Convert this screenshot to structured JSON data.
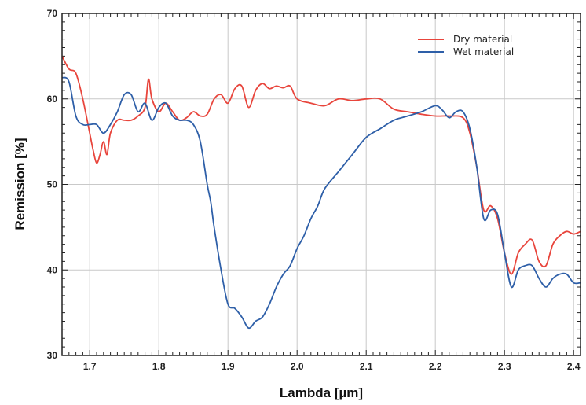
{
  "chart_data": {
    "type": "line",
    "xlabel": "Lambda [µm]",
    "ylabel": "Remission [%]",
    "xlim": [
      1.66,
      2.41
    ],
    "ylim": [
      30,
      70
    ],
    "grid": true,
    "legend_placement": "top-right",
    "x_ticks": [
      "1.7",
      "1.8",
      "1.9",
      "2.0",
      "2.1",
      "2.2",
      "2.3",
      "2.4"
    ],
    "y_ticks": [
      "30",
      "40",
      "50",
      "60",
      "70"
    ],
    "series": [
      {
        "name": "Dry material",
        "color": "#e8453c",
        "x": [
          1.66,
          1.67,
          1.68,
          1.69,
          1.7,
          1.705,
          1.71,
          1.715,
          1.72,
          1.725,
          1.73,
          1.74,
          1.75,
          1.76,
          1.77,
          1.78,
          1.785,
          1.79,
          1.8,
          1.81,
          1.82,
          1.83,
          1.84,
          1.85,
          1.86,
          1.87,
          1.88,
          1.89,
          1.9,
          1.91,
          1.92,
          1.93,
          1.94,
          1.95,
          1.96,
          1.97,
          1.98,
          1.99,
          2.0,
          2.02,
          2.04,
          2.06,
          2.08,
          2.1,
          2.12,
          2.14,
          2.16,
          2.18,
          2.2,
          2.22,
          2.24,
          2.25,
          2.26,
          2.27,
          2.28,
          2.29,
          2.3,
          2.31,
          2.32,
          2.33,
          2.34,
          2.35,
          2.36,
          2.37,
          2.38,
          2.39,
          2.4,
          2.41
        ],
        "y": [
          65,
          63.5,
          63,
          60,
          56,
          54,
          52.5,
          53.5,
          55,
          53.5,
          56,
          57.5,
          57.5,
          57.5,
          58,
          59,
          62.3,
          60,
          58.5,
          59.5,
          58.5,
          57.5,
          57.8,
          58.5,
          58,
          58.2,
          60,
          60.5,
          59.5,
          61.2,
          61.5,
          59,
          61,
          61.8,
          61.2,
          61.5,
          61.3,
          61.5,
          60,
          59.5,
          59.2,
          60,
          59.8,
          60,
          60,
          58.8,
          58.5,
          58.2,
          58,
          58,
          57.8,
          56,
          52,
          47,
          47.5,
          46,
          42,
          39.5,
          42,
          43,
          43.5,
          41,
          40.5,
          43,
          44,
          44.5,
          44.2,
          44.5
        ]
      },
      {
        "name": "Wet material",
        "color": "#2e5fa8",
        "x": [
          1.66,
          1.67,
          1.68,
          1.69,
          1.7,
          1.71,
          1.72,
          1.73,
          1.74,
          1.75,
          1.76,
          1.77,
          1.78,
          1.79,
          1.8,
          1.81,
          1.82,
          1.83,
          1.84,
          1.85,
          1.86,
          1.87,
          1.875,
          1.88,
          1.89,
          1.9,
          1.91,
          1.92,
          1.93,
          1.94,
          1.95,
          1.96,
          1.97,
          1.98,
          1.99,
          2.0,
          2.01,
          2.02,
          2.03,
          2.04,
          2.06,
          2.08,
          2.1,
          2.12,
          2.14,
          2.16,
          2.18,
          2.2,
          2.21,
          2.22,
          2.23,
          2.24,
          2.25,
          2.26,
          2.27,
          2.28,
          2.29,
          2.3,
          2.31,
          2.32,
          2.33,
          2.34,
          2.35,
          2.36,
          2.37,
          2.38,
          2.39,
          2.4,
          2.41
        ],
        "y": [
          62.5,
          62,
          58,
          57,
          57,
          57,
          56,
          57,
          58.5,
          60.5,
          60.5,
          58.5,
          59.5,
          57.5,
          59,
          59.5,
          58,
          57.5,
          57.5,
          57,
          55,
          50,
          48,
          45,
          40,
          36,
          35.5,
          34.5,
          33.2,
          34,
          34.5,
          36,
          38,
          39.5,
          40.5,
          42.5,
          44,
          46,
          47.5,
          49.5,
          51.5,
          53.5,
          55.5,
          56.5,
          57.5,
          58,
          58.5,
          59.2,
          58.7,
          57.8,
          58.5,
          58.5,
          56.5,
          52,
          46,
          47,
          46.5,
          42,
          38,
          40,
          40.5,
          40.5,
          39,
          38,
          39,
          39.5,
          39.5,
          38.5,
          38.5
        ]
      }
    ]
  }
}
